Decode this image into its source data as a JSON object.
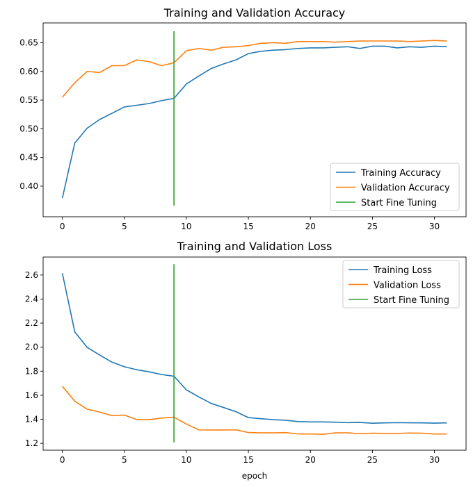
{
  "chart_data": [
    {
      "type": "line",
      "title": "Training and Validation Accuracy",
      "xlabel": "",
      "ylabel": "",
      "xlim": [
        -1.55,
        32.55
      ],
      "ylim": [
        0.3466,
        0.6845
      ],
      "xticks": [
        0,
        5,
        10,
        15,
        20,
        25,
        30
      ],
      "yticks": [
        0.4,
        0.45,
        0.5,
        0.55,
        0.6,
        0.65
      ],
      "ytick_labels": [
        "0.40",
        "0.45",
        "0.50",
        "0.55",
        "0.60",
        "0.65"
      ],
      "legend_position": "lower-right",
      "series": [
        {
          "name": "Training Accuracy",
          "color": "#1f77b4",
          "x": [
            0,
            1,
            2,
            3,
            4,
            5,
            6,
            7,
            8,
            9,
            10,
            11,
            12,
            13,
            14,
            15,
            16,
            17,
            18,
            19,
            20,
            21,
            22,
            23,
            24,
            25,
            26,
            27,
            28,
            29,
            30,
            31
          ],
          "values": [
            0.379,
            0.475,
            0.501,
            0.516,
            0.527,
            0.538,
            0.541,
            0.544,
            0.549,
            0.553,
            0.578,
            0.592,
            0.605,
            0.613,
            0.62,
            0.631,
            0.635,
            0.637,
            0.638,
            0.64,
            0.641,
            0.641,
            0.642,
            0.643,
            0.64,
            0.644,
            0.644,
            0.641,
            0.643,
            0.642,
            0.644,
            0.643
          ]
        },
        {
          "name": "Validation Accuracy",
          "color": "#ff7f0e",
          "x": [
            0,
            1,
            2,
            3,
            4,
            5,
            6,
            7,
            8,
            9,
            10,
            11,
            12,
            13,
            14,
            15,
            16,
            17,
            18,
            19,
            20,
            21,
            22,
            23,
            24,
            25,
            26,
            27,
            28,
            29,
            30,
            31
          ],
          "values": [
            0.555,
            0.58,
            0.6,
            0.598,
            0.61,
            0.61,
            0.62,
            0.617,
            0.61,
            0.615,
            0.636,
            0.64,
            0.637,
            0.642,
            0.643,
            0.645,
            0.649,
            0.65,
            0.649,
            0.652,
            0.652,
            0.652,
            0.651,
            0.652,
            0.653,
            0.653,
            0.653,
            0.653,
            0.652,
            0.653,
            0.654,
            0.653
          ]
        },
        {
          "name": "Start Fine Tuning",
          "color": "#2ca02c",
          "x": [
            9,
            9
          ],
          "values": [
            0.366,
            0.67
          ]
        }
      ]
    },
    {
      "type": "line",
      "title": "Training and Validation Loss",
      "xlabel": "epoch",
      "ylabel": "",
      "xlim": [
        -1.55,
        32.55
      ],
      "ylim": [
        1.143,
        2.7493
      ],
      "xticks": [
        0,
        5,
        10,
        15,
        20,
        25,
        30
      ],
      "yticks": [
        1.2,
        1.4,
        1.6,
        1.8,
        2.0,
        2.2,
        2.4,
        2.6
      ],
      "ytick_labels": [
        "1.2",
        "1.4",
        "1.6",
        "1.8",
        "2.0",
        "2.2",
        "2.4",
        "2.6"
      ],
      "legend_position": "upper-right",
      "series": [
        {
          "name": "Training Loss",
          "color": "#1f77b4",
          "x": [
            0,
            1,
            2,
            3,
            4,
            5,
            6,
            7,
            8,
            9,
            10,
            11,
            12,
            13,
            14,
            15,
            16,
            17,
            18,
            19,
            20,
            21,
            22,
            23,
            24,
            25,
            26,
            27,
            28,
            29,
            30,
            31
          ],
          "values": [
            2.615,
            2.127,
            1.998,
            1.935,
            1.875,
            1.837,
            1.812,
            1.795,
            1.772,
            1.758,
            1.645,
            1.586,
            1.532,
            1.498,
            1.463,
            1.414,
            1.405,
            1.397,
            1.392,
            1.381,
            1.378,
            1.378,
            1.376,
            1.372,
            1.374,
            1.367,
            1.37,
            1.372,
            1.371,
            1.37,
            1.368,
            1.37
          ]
        },
        {
          "name": "Validation Loss",
          "color": "#ff7f0e",
          "x": [
            0,
            1,
            2,
            3,
            4,
            5,
            6,
            7,
            8,
            9,
            10,
            11,
            12,
            13,
            14,
            15,
            16,
            17,
            18,
            19,
            20,
            21,
            22,
            23,
            24,
            25,
            26,
            27,
            28,
            29,
            30,
            31
          ],
          "values": [
            1.675,
            1.55,
            1.484,
            1.46,
            1.43,
            1.435,
            1.397,
            1.397,
            1.41,
            1.418,
            1.36,
            1.312,
            1.311,
            1.311,
            1.312,
            1.29,
            1.287,
            1.287,
            1.289,
            1.278,
            1.278,
            1.275,
            1.287,
            1.287,
            1.28,
            1.284,
            1.282,
            1.282,
            1.286,
            1.284,
            1.278,
            1.278
          ]
        },
        {
          "name": "Start Fine Tuning",
          "color": "#2ca02c",
          "x": [
            9,
            9
          ],
          "values": [
            1.208,
            2.69
          ]
        }
      ]
    }
  ]
}
